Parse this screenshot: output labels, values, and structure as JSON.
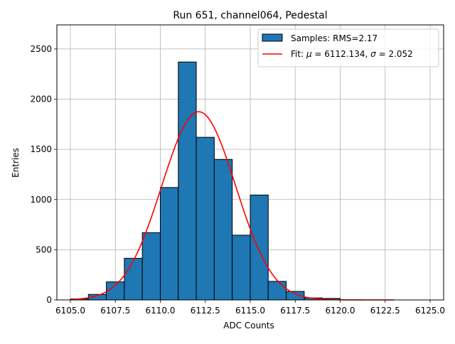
{
  "chart_data": {
    "type": "bar",
    "title": "Run 651, channel064, Pedestal",
    "xlabel": "ADC Counts",
    "ylabel": "Entries",
    "xlim": [
      6104.25,
      6125.75
    ],
    "ylim": [
      0,
      2740
    ],
    "xticks": [
      6105.0,
      6107.5,
      6110.0,
      6112.5,
      6115.0,
      6117.5,
      6120.0,
      6122.5,
      6125.0
    ],
    "xtick_labels": [
      "6105.0",
      "6107.5",
      "6110.0",
      "6112.5",
      "6115.0",
      "6117.5",
      "6120.0",
      "6122.5",
      "6125.0"
    ],
    "yticks": [
      0,
      500,
      1000,
      1500,
      2000,
      2500
    ],
    "ytick_labels": [
      "0",
      "500",
      "1000",
      "1500",
      "2000",
      "2500"
    ],
    "grid": true,
    "legend_position": "top-right",
    "series": [
      {
        "name": "Samples: RMS=2.17",
        "kind": "histogram",
        "color": "#1f77b4",
        "edgecolor": "#000000",
        "bin_edges": [
          6105.0,
          6106.0,
          6107.0,
          6108.0,
          6109.0,
          6110.0,
          6111.0,
          6112.0,
          6113.0,
          6114.0,
          6115.0,
          6116.0,
          6117.0,
          6118.0,
          6119.0,
          6120.0,
          6121.0,
          6122.0,
          6123.0,
          6124.0,
          6125.0
        ],
        "counts": [
          10,
          55,
          180,
          415,
          670,
          1120,
          2370,
          1620,
          1400,
          645,
          1045,
          185,
          85,
          20,
          15,
          0,
          0,
          0,
          0,
          0
        ]
      },
      {
        "name_parts": [
          "Fit: ",
          "μ",
          " = 6112.134, ",
          "σ",
          " = 2.052"
        ],
        "kind": "gaussian-fit",
        "color": "#ff0000",
        "mu": 6112.134,
        "sigma": 2.052,
        "amplitude": 1875,
        "x_range": [
          6105.0,
          6123.0
        ]
      }
    ]
  }
}
